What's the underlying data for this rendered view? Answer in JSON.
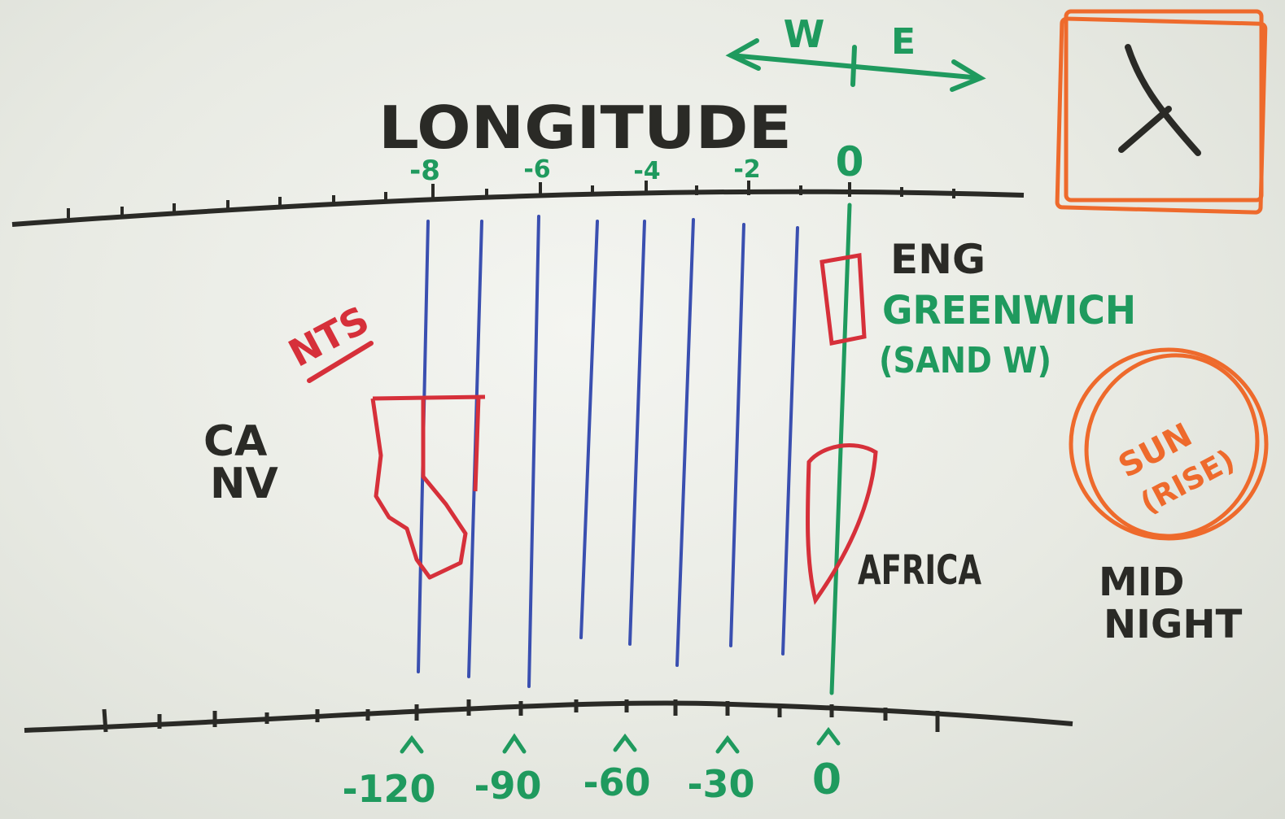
{
  "title": "LONGITUDE",
  "direction": {
    "west": "W",
    "east": "E"
  },
  "top_scale_labels": [
    "-8",
    "-6",
    "-4",
    "-2",
    "0"
  ],
  "bottom_scale_labels": [
    "-120",
    "-90",
    "-60",
    "-30",
    "0"
  ],
  "notes": {
    "nts": "NTS",
    "ca_nv_line1": "CA",
    "ca_nv_line2": "NV",
    "eng": "ENG",
    "greenwich": "GREENWICH",
    "sandw": "(SAND W)",
    "africa": "AFRICA",
    "sun_line1": "SUN",
    "sun_line2": "(RISE)",
    "midnight_line1": "MID",
    "midnight_line2": "NIGHT"
  },
  "colors": {
    "marker_black": "#2a2a26",
    "marker_green": "#1f9a5e",
    "marker_red": "#d6303a",
    "marker_orange": "#ee6a2c",
    "marker_blue": "#3a4fb0"
  },
  "icons": {
    "clock_box": "clock-hands-icon",
    "sun_circle": "sun-circle-icon"
  }
}
